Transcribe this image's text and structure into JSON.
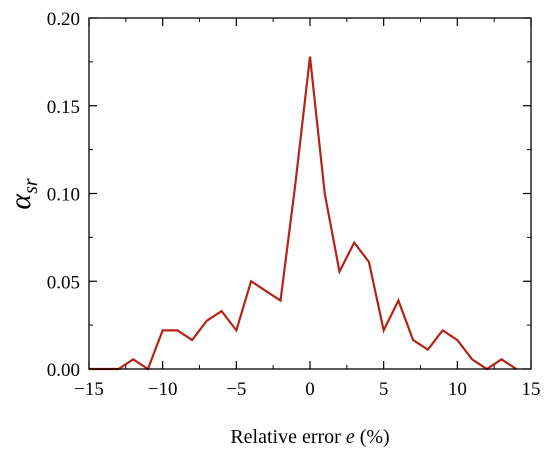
{
  "chart_data": {
    "type": "line",
    "xlabel_prefix": "Relative error ",
    "xlabel_var": "e",
    "xlabel_suffix": " (%)",
    "ylabel_symbol": "α",
    "ylabel_sub": "sr",
    "xlim": [
      -15,
      15
    ],
    "ylim": [
      0,
      0.2
    ],
    "x_ticks": [
      -15,
      -10,
      -5,
      0,
      5,
      10,
      15
    ],
    "x_tick_labels": [
      "−15",
      "−10",
      "−5",
      "0",
      "5",
      "10",
      "15"
    ],
    "y_ticks": [
      0,
      0.05,
      0.1,
      0.15,
      0.2
    ],
    "y_tick_labels": [
      "0.00",
      "0.05",
      "0.10",
      "0.15",
      "0.20"
    ],
    "grid": false,
    "series": [
      {
        "color": "#b22418",
        "x": [
          -15,
          -14,
          -13,
          -12,
          -11,
          -10,
          -9,
          -8,
          -7,
          -6,
          -5,
          -4,
          -3,
          -2,
          -1,
          0,
          1,
          2,
          3,
          4,
          5,
          6,
          7,
          8,
          9,
          10,
          11,
          12,
          13,
          14
        ],
        "y": [
          0,
          0,
          0,
          0.0055,
          0,
          0.022,
          0.022,
          0.0165,
          0.0275,
          0.033,
          0.022,
          0.05,
          0.0445,
          0.039,
          0.105,
          0.178,
          0.1,
          0.0555,
          0.072,
          0.061,
          0.022,
          0.039,
          0.0165,
          0.011,
          0.022,
          0.0165,
          0.0055,
          0,
          0.0055,
          0
        ]
      }
    ]
  }
}
